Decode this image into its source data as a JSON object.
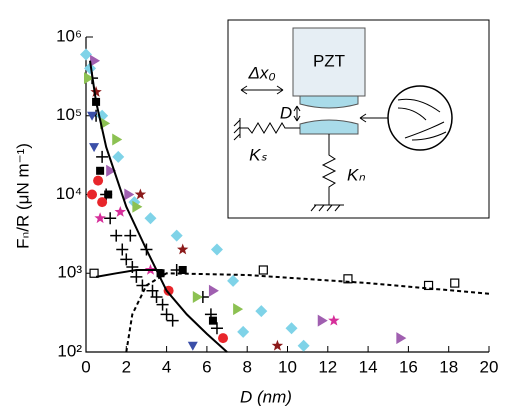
{
  "chart_data": {
    "type": "scatter",
    "x_label": "D (nm)",
    "y_label": "Fₙ/R (μN m⁻¹)",
    "xlim": [
      0,
      20
    ],
    "ylim": [
      100,
      1000000
    ],
    "ylog": true,
    "xticks": [
      0,
      2,
      4,
      6,
      8,
      10,
      12,
      14,
      16,
      18,
      20
    ],
    "yticks": [
      {
        "value": 100,
        "label": "10²"
      },
      {
        "value": 1000,
        "label": "10³"
      },
      {
        "value": 10000,
        "label": "10⁴"
      },
      {
        "value": 100000,
        "label": "10⁵"
      },
      {
        "value": 1000000,
        "label": "10⁶"
      }
    ],
    "series": [
      {
        "marker": "cross",
        "color": "#000000",
        "x": [
          0.3,
          0.5,
          0.8,
          1,
          1.2,
          1.5,
          1.8,
          2,
          2.3,
          2.5,
          2.8,
          3,
          3.3,
          3.5,
          3.8,
          4,
          4.3,
          5.8,
          6.2,
          6.5,
          4.5,
          2.2
        ],
        "y": [
          300000,
          100000,
          30000,
          10000,
          5000,
          3000,
          2000,
          1500,
          1200,
          900,
          700,
          2000,
          600,
          500,
          400,
          300,
          250,
          500,
          300,
          200,
          1100,
          3000
        ]
      },
      {
        "marker": "square",
        "color": "#000000",
        "x": [
          0.5,
          0.7,
          3.7,
          4.8,
          6.3,
          1.1
        ],
        "y": [
          150000,
          20000,
          1000,
          1100,
          250,
          10000
        ]
      },
      {
        "marker": "circle",
        "color": "#e8262b",
        "x": [
          0.3,
          0.6,
          0.8,
          4.1,
          6.8
        ],
        "y": [
          10000,
          15000,
          8000,
          600,
          150
        ]
      },
      {
        "marker": "tri-down",
        "color": "#3b4fa8",
        "x": [
          0.3,
          0.4,
          5.3
        ],
        "y": [
          100000,
          40000,
          120
        ]
      },
      {
        "marker": "star",
        "color": "#d62f9a",
        "x": [
          0.7,
          1.7,
          3.2,
          12.3
        ],
        "y": [
          5000,
          6000,
          1100,
          250
        ]
      },
      {
        "marker": "star",
        "color": "#8b1a1a",
        "x": [
          0.5,
          2.7,
          4.8,
          9.5
        ],
        "y": [
          200000,
          10000,
          2000,
          120
        ]
      },
      {
        "marker": "diamond",
        "color": "#7fd3e8",
        "x": [
          0,
          0.2,
          0.8,
          1.6,
          2.4,
          3.2,
          4.5,
          6.5,
          7.3,
          7.8,
          8.7,
          10.8,
          10.2
        ],
        "y": [
          600000,
          400000,
          100000,
          30000,
          8000,
          5000,
          3000,
          2000,
          800,
          180,
          330,
          120,
          200
        ]
      },
      {
        "marker": "tri-right",
        "color": "#8cc152",
        "x": [
          0.1,
          0.9,
          1.5,
          2.5,
          5.5,
          7.5
        ],
        "y": [
          300000,
          80000,
          50000,
          7000,
          500,
          350
        ]
      },
      {
        "marker": "tri-right",
        "color": "#a05fb0",
        "x": [
          0.4,
          1.2,
          2.1,
          6.3,
          11.7,
          15.6
        ],
        "y": [
          500000,
          20000,
          10000,
          600,
          250,
          150
        ]
      },
      {
        "marker": "open-square",
        "color": "#000000",
        "x": [
          0.4,
          8.8,
          13,
          17,
          18.3
        ],
        "y": [
          1000,
          1100,
          850,
          700,
          750
        ]
      },
      {
        "marker": "line",
        "color": "#000000",
        "x": [
          0.2,
          0.5,
          1,
          2,
          3,
          4,
          5,
          6,
          7
        ],
        "y": [
          500000,
          150000,
          40000,
          7000,
          2000,
          600,
          300,
          170,
          100
        ]
      },
      {
        "marker": "line",
        "color": "#000000",
        "x": [
          3.8,
          2.5,
          1.5,
          0.5
        ],
        "y": [
          1100,
          1100,
          1000,
          900
        ]
      },
      {
        "marker": "dashed",
        "color": "#000000",
        "x": [
          2,
          2.3,
          3,
          4,
          8,
          14,
          20
        ],
        "y": [
          100,
          300,
          700,
          1000,
          950,
          750,
          550
        ]
      }
    ],
    "inset": {
      "pzt": "PZT",
      "dx": "Δx₀",
      "d": "D",
      "ks": "Kₛ",
      "kn": "Kₙ"
    }
  }
}
